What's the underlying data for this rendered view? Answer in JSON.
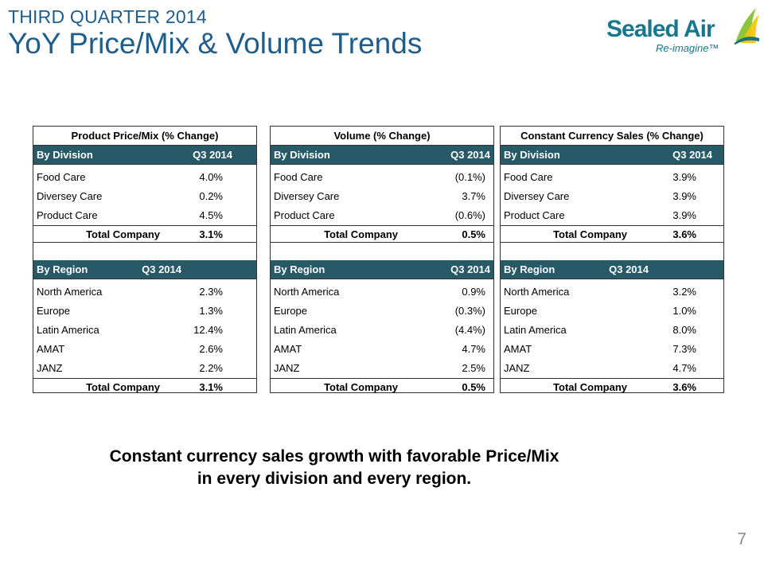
{
  "header": {
    "kicker": "THIRD QUARTER 2014",
    "title": "YoY Price/Mix & Volume Trends"
  },
  "logo": {
    "name": "Sealed Air",
    "tagline": "Re-imagine™",
    "colors": {
      "text": "#18778c",
      "sail_green": "#8cc63f",
      "sail_yellow": "#f5c400",
      "sail_blue": "#1b6f8a"
    }
  },
  "colors": {
    "band": "#275966",
    "title": "#1f5e8c"
  },
  "panels": [
    {
      "title": "Product Price/Mix (% Change)",
      "division": {
        "header_label": "By Division",
        "header_period": "Q3 2014",
        "rows": [
          {
            "label": "Food Care",
            "value": "4.0%"
          },
          {
            "label": "Diversey Care",
            "value": "0.2%"
          },
          {
            "label": "Product Care",
            "value": "4.5%"
          }
        ],
        "total_label": "Total Company",
        "total_value": "3.1%"
      },
      "region": {
        "header_label": "By Region",
        "header_period": "Q3 2014",
        "rows": [
          {
            "label": "North America",
            "value": "2.3%"
          },
          {
            "label": "Europe",
            "value": "1.3%"
          },
          {
            "label": "Latin America",
            "value": "12.4%"
          },
          {
            "label": "AMAT",
            "value": "2.6%"
          },
          {
            "label": "JANZ",
            "value": "2.2%"
          }
        ],
        "total_label": "Total Company",
        "total_value": "3.1%"
      }
    },
    {
      "title": "Volume (% Change)",
      "division": {
        "header_label": "By Division",
        "header_period": "Q3 2014",
        "rows": [
          {
            "label": "Food Care",
            "value": "(0.1%)"
          },
          {
            "label": "Diversey Care",
            "value": "3.7%"
          },
          {
            "label": "Product Care",
            "value": "(0.6%)"
          }
        ],
        "total_label": "Total Company",
        "total_value": "0.5%"
      },
      "region": {
        "header_label": "By Region",
        "header_period": "Q3 2014",
        "rows": [
          {
            "label": "North America",
            "value": "0.9%"
          },
          {
            "label": "Europe",
            "value": "(0.3%)"
          },
          {
            "label": "Latin America",
            "value": "(4.4%)"
          },
          {
            "label": "AMAT",
            "value": "4.7%"
          },
          {
            "label": "JANZ",
            "value": "2.5%"
          }
        ],
        "total_label": "Total Company",
        "total_value": "0.5%"
      }
    },
    {
      "title": "Constant Currency Sales (% Change)",
      "division": {
        "header_label": "By Division",
        "header_period": "Q3 2014",
        "rows": [
          {
            "label": "Food Care",
            "value": "3.9%"
          },
          {
            "label": "Diversey Care",
            "value": "3.9%"
          },
          {
            "label": "Product Care",
            "value": "3.9%"
          }
        ],
        "total_label": "Total Company",
        "total_value": "3.6%"
      },
      "region": {
        "header_label": "By Region",
        "header_period": "Q3 2014",
        "rows": [
          {
            "label": "North America",
            "value": "3.2%"
          },
          {
            "label": "Europe",
            "value": "1.0%"
          },
          {
            "label": "Latin America",
            "value": "8.0%"
          },
          {
            "label": "AMAT",
            "value": "7.3%"
          },
          {
            "label": "JANZ",
            "value": "4.7%"
          }
        ],
        "total_label": "Total Company",
        "total_value": "3.6%"
      }
    }
  ],
  "caption": {
    "line1": "Constant currency sales growth with favorable Price/Mix",
    "line2": "in every division and every region."
  },
  "page_number": "7"
}
